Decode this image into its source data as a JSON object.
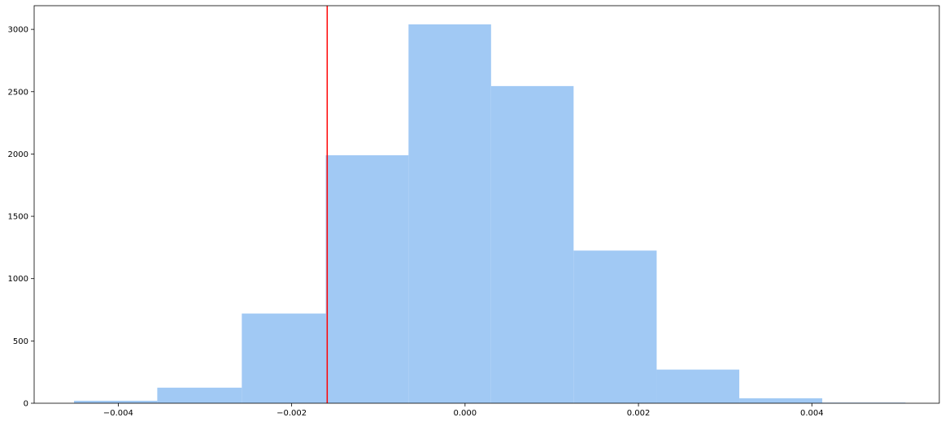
{
  "chart_data": {
    "type": "bar",
    "title": "",
    "xlabel": "",
    "ylabel": "",
    "xlim": [
      -0.00497,
      0.00547
    ],
    "ylim": [
      0,
      3190
    ],
    "xticks": [
      -0.004,
      -0.002,
      0.0,
      0.002,
      0.004
    ],
    "xtick_labels": [
      "−0.004",
      "−0.002",
      "0.000",
      "0.002",
      "0.004"
    ],
    "yticks": [
      0,
      500,
      1000,
      1500,
      2000,
      2500,
      3000
    ],
    "ytick_labels": [
      "0",
      "500",
      "1000",
      "1500",
      "2000",
      "2500",
      "3000"
    ],
    "bin_edges": [
      -0.00451,
      -0.00355,
      -0.002575,
      -0.001607,
      -0.000652,
      0.0003,
      0.001252,
      0.00221,
      0.003163,
      0.00412,
      0.00508
    ],
    "counts": [
      20,
      125,
      720,
      1990,
      3040,
      2545,
      1225,
      270,
      40,
      5
    ],
    "bar_color": "#a1c9f4",
    "vline": {
      "x": -0.00159,
      "color": "#ff0000"
    },
    "grid": false,
    "legend": false
  }
}
